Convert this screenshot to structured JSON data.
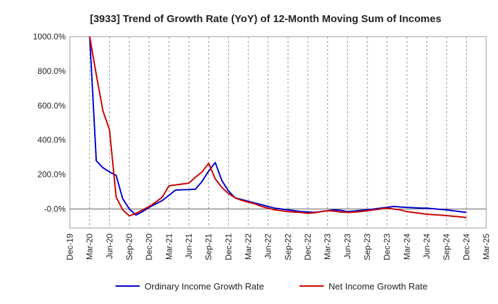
{
  "chart_data": {
    "type": "line",
    "title": "[3933]  Trend of Growth Rate (YoY) of 12-Month Moving Sum of Incomes",
    "xlabel": "",
    "ylabel": "",
    "y_ticks": [
      "-0.0%",
      "200.0%",
      "400.0%",
      "600.0%",
      "800.0%",
      "1000.0%"
    ],
    "ylim": [
      -110,
      1000
    ],
    "x_ticks": [
      "Dec-19",
      "Mar-20",
      "Jun-20",
      "Sep-20",
      "Dec-20",
      "Mar-21",
      "Jun-21",
      "Sep-21",
      "Dec-21",
      "Mar-22",
      "Jun-22",
      "Sep-22",
      "Dec-22",
      "Mar-23",
      "Jun-23",
      "Sep-23",
      "Dec-23",
      "Mar-24",
      "Jun-24",
      "Sep-24",
      "Dec-24",
      "Mar-25"
    ],
    "grid": "vertical dashed",
    "legend_position": "bottom",
    "series": [
      {
        "name": "Ordinary Income Growth Rate",
        "color": "#0000cc",
        "x": [
          "Mar-20",
          "Apr-20",
          "May-20",
          "Jun-20",
          "Jul-20",
          "Aug-20",
          "Sep-20",
          "Oct-20",
          "Nov-20",
          "Dec-20",
          "Jan-21",
          "Feb-21",
          "Mar-21",
          "Apr-21",
          "May-21",
          "Jun-21",
          "Jul-21",
          "Aug-21",
          "Sep-21",
          "Oct-21",
          "Nov-21",
          "Dec-21",
          "Jan-22",
          "Feb-22",
          "Mar-22",
          "Apr-22",
          "May-22",
          "Jun-22",
          "Jul-22",
          "Aug-22",
          "Sep-22",
          "Oct-22",
          "Nov-22",
          "Dec-22",
          "Jan-23",
          "Feb-23",
          "Mar-23",
          "Apr-23",
          "May-23",
          "Jun-23",
          "Jul-23",
          "Aug-23",
          "Sep-23",
          "Oct-23",
          "Nov-23",
          "Dec-23",
          "Jan-24",
          "Feb-24",
          "Mar-24",
          "Apr-24",
          "May-24",
          "Jun-24",
          "Jul-24",
          "Aug-24",
          "Sep-24",
          "Oct-24",
          "Nov-24",
          "Dec-24"
        ],
        "values": [
          1000,
          280,
          240,
          215,
          195,
          60,
          0,
          -35,
          -15,
          10,
          30,
          50,
          80,
          110,
          112,
          113,
          115,
          160,
          220,
          270,
          165,
          105,
          65,
          55,
          45,
          35,
          25,
          15,
          5,
          0,
          -5,
          -10,
          -15,
          -17,
          -20,
          -15,
          -10,
          -5,
          -8,
          -15,
          -12,
          -8,
          -5,
          0,
          5,
          10,
          15,
          12,
          10,
          8,
          6,
          5,
          2,
          -2,
          -5,
          -10,
          -15,
          -20
        ]
      },
      {
        "name": "Net Income Growth Rate",
        "color": "#cc0000",
        "x": [
          "Mar-20",
          "Apr-20",
          "May-20",
          "Jun-20",
          "Jul-20",
          "Aug-20",
          "Sep-20",
          "Oct-20",
          "Nov-20",
          "Dec-20",
          "Jan-21",
          "Feb-21",
          "Mar-21",
          "Apr-21",
          "May-21",
          "Jun-21",
          "Jul-21",
          "Aug-21",
          "Sep-21",
          "Oct-21",
          "Nov-21",
          "Dec-21",
          "Jan-22",
          "Feb-22",
          "Mar-22",
          "Apr-22",
          "May-22",
          "Jun-22",
          "Jul-22",
          "Aug-22",
          "Sep-22",
          "Oct-22",
          "Nov-22",
          "Dec-22",
          "Jan-23",
          "Feb-23",
          "Mar-23",
          "Apr-23",
          "May-23",
          "Jun-23",
          "Jul-23",
          "Aug-23",
          "Sep-23",
          "Oct-23",
          "Nov-23",
          "Dec-23",
          "Jan-24",
          "Feb-24",
          "Mar-24",
          "Apr-24",
          "May-24",
          "Jun-24",
          "Jul-24",
          "Aug-24",
          "Sep-24",
          "Oct-24",
          "Nov-24",
          "Dec-24"
        ],
        "values": [
          1000,
          780,
          570,
          460,
          70,
          -5,
          -40,
          -25,
          -5,
          15,
          40,
          70,
          135,
          140,
          145,
          150,
          185,
          215,
          265,
          175,
          125,
          90,
          65,
          50,
          40,
          30,
          15,
          5,
          -5,
          -10,
          -15,
          -18,
          -20,
          -25,
          -22,
          -15,
          -10,
          -12,
          -18,
          -20,
          -18,
          -15,
          -10,
          -5,
          0,
          5,
          0,
          -5,
          -15,
          -20,
          -25,
          -30,
          -33,
          -35,
          -38,
          -42,
          -45,
          -50
        ]
      }
    ]
  }
}
